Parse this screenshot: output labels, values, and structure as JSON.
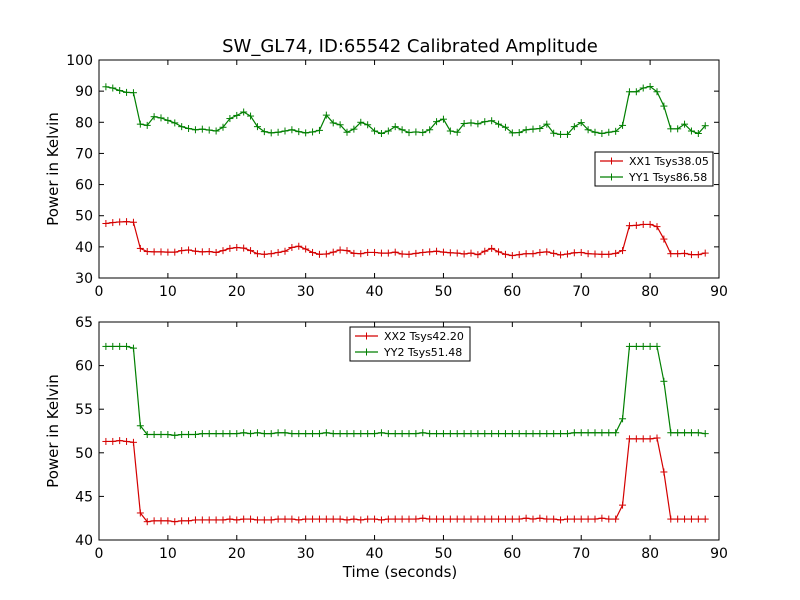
{
  "title": "SW_GL74, ID:65542 Calibrated Amplitude",
  "colors": {
    "xx": "#d40000",
    "yy": "#007f00"
  },
  "chart_data": [
    {
      "type": "line",
      "title": "SW_GL74, ID:65542 Calibrated Amplitude",
      "xlabel": "",
      "ylabel": "Power in Kelvin",
      "xlim": [
        0,
        90
      ],
      "ylim": [
        30,
        100
      ],
      "xticks": [
        "0",
        "10",
        "20",
        "30",
        "40",
        "50",
        "60",
        "70",
        "80",
        "90"
      ],
      "yticks": [
        "30",
        "40",
        "50",
        "60",
        "70",
        "80",
        "90",
        "100"
      ],
      "grid": false,
      "legend": "center-right",
      "marker": "+",
      "x": [
        1,
        2,
        3,
        4,
        5,
        6,
        7,
        8,
        9,
        10,
        11,
        12,
        13,
        14,
        15,
        16,
        17,
        18,
        19,
        20,
        21,
        22,
        23,
        24,
        25,
        26,
        27,
        28,
        29,
        30,
        31,
        32,
        33,
        34,
        35,
        36,
        37,
        38,
        39,
        40,
        41,
        42,
        43,
        44,
        45,
        46,
        47,
        48,
        49,
        50,
        51,
        52,
        53,
        54,
        55,
        56,
        57,
        58,
        59,
        60,
        61,
        62,
        63,
        64,
        65,
        66,
        67,
        68,
        69,
        70,
        71,
        72,
        73,
        74,
        75,
        76,
        77,
        78,
        79,
        80,
        81,
        82,
        83,
        84,
        85,
        86,
        87,
        88
      ],
      "series": [
        {
          "name": "XX1 Tsys38.05",
          "color": "#d40000",
          "values": [
            47.5,
            47.8,
            48.0,
            48.1,
            47.9,
            39.5,
            38.5,
            38.4,
            38.4,
            38.3,
            38.3,
            38.8,
            39.0,
            38.6,
            38.4,
            38.5,
            38.2,
            38.8,
            39.5,
            39.8,
            39.6,
            38.8,
            37.8,
            37.6,
            37.8,
            38.2,
            38.6,
            39.8,
            40.2,
            39.3,
            38.2,
            37.6,
            37.7,
            38.3,
            39.0,
            38.8,
            37.9,
            37.8,
            38.2,
            38.2,
            38.0,
            38.0,
            38.3,
            37.7,
            37.6,
            37.9,
            38.2,
            38.4,
            38.6,
            38.3,
            38.1,
            38.0,
            37.7,
            38.0,
            37.5,
            38.6,
            39.5,
            38.4,
            37.6,
            37.2,
            37.5,
            37.8,
            37.8,
            38.2,
            38.4,
            37.9,
            37.4,
            37.7,
            38.1,
            38.2,
            37.8,
            37.7,
            37.6,
            37.6,
            37.9,
            38.8,
            46.8,
            46.9,
            47.2,
            47.2,
            46.5,
            42.5,
            37.8,
            37.8,
            37.9,
            37.5,
            37.5,
            38.0
          ]
        },
        {
          "name": "YY1 Tsys86.58",
          "color": "#007f00",
          "values": [
            91.4,
            91.0,
            90.2,
            89.6,
            89.5,
            79.4,
            79.0,
            81.8,
            81.4,
            80.6,
            79.8,
            78.6,
            78.0,
            77.6,
            77.8,
            77.5,
            77.2,
            78.4,
            81.2,
            82.2,
            83.3,
            82.0,
            78.6,
            77.0,
            76.6,
            76.8,
            77.2,
            77.6,
            77.0,
            76.6,
            76.9,
            77.4,
            82.3,
            79.8,
            79.2,
            76.8,
            77.8,
            80.0,
            79.2,
            77.2,
            76.4,
            77.2,
            78.6,
            77.6,
            76.7,
            76.9,
            76.7,
            77.6,
            80.2,
            81.0,
            77.2,
            76.8,
            79.6,
            79.8,
            79.5,
            80.2,
            80.5,
            79.4,
            78.4,
            76.6,
            76.7,
            77.6,
            77.8,
            78.0,
            79.4,
            76.5,
            76.1,
            76.1,
            78.6,
            79.9,
            77.6,
            76.8,
            76.4,
            76.8,
            77.1,
            79.0,
            89.8,
            89.8,
            91.0,
            91.5,
            89.8,
            85.2,
            77.9,
            77.9,
            79.4,
            77.2,
            76.4,
            78.9
          ]
        }
      ]
    },
    {
      "type": "line",
      "title": "",
      "xlabel": "Time (seconds)",
      "ylabel": "Power in Kelvin",
      "xlim": [
        0,
        90
      ],
      "ylim": [
        40,
        65
      ],
      "xticks": [
        "0",
        "10",
        "20",
        "30",
        "40",
        "50",
        "60",
        "70",
        "80",
        "90"
      ],
      "yticks": [
        "40",
        "45",
        "50",
        "55",
        "60",
        "65"
      ],
      "grid": false,
      "legend": "top-center",
      "marker": "+",
      "x": [
        1,
        2,
        3,
        4,
        5,
        6,
        7,
        8,
        9,
        10,
        11,
        12,
        13,
        14,
        15,
        16,
        17,
        18,
        19,
        20,
        21,
        22,
        23,
        24,
        25,
        26,
        27,
        28,
        29,
        30,
        31,
        32,
        33,
        34,
        35,
        36,
        37,
        38,
        39,
        40,
        41,
        42,
        43,
        44,
        45,
        46,
        47,
        48,
        49,
        50,
        51,
        52,
        53,
        54,
        55,
        56,
        57,
        58,
        59,
        60,
        61,
        62,
        63,
        64,
        65,
        66,
        67,
        68,
        69,
        70,
        71,
        72,
        73,
        74,
        75,
        76,
        77,
        78,
        79,
        80,
        81,
        82,
        83,
        84,
        85,
        86,
        87,
        88
      ],
      "series": [
        {
          "name": "XX2 Tsys42.20",
          "color": "#d40000",
          "values": [
            51.3,
            51.3,
            51.4,
            51.3,
            51.2,
            43.1,
            42.1,
            42.2,
            42.2,
            42.2,
            42.1,
            42.2,
            42.2,
            42.3,
            42.3,
            42.3,
            42.3,
            42.3,
            42.4,
            42.3,
            42.4,
            42.4,
            42.3,
            42.3,
            42.3,
            42.4,
            42.4,
            42.4,
            42.3,
            42.4,
            42.4,
            42.4,
            42.4,
            42.4,
            42.4,
            42.3,
            42.4,
            42.3,
            42.4,
            42.4,
            42.3,
            42.4,
            42.4,
            42.4,
            42.4,
            42.4,
            42.5,
            42.4,
            42.4,
            42.4,
            42.4,
            42.4,
            42.4,
            42.4,
            42.4,
            42.4,
            42.4,
            42.4,
            42.4,
            42.4,
            42.4,
            42.5,
            42.4,
            42.5,
            42.4,
            42.4,
            42.3,
            42.4,
            42.4,
            42.4,
            42.4,
            42.4,
            42.5,
            42.4,
            42.4,
            44.0,
            51.6,
            51.6,
            51.6,
            51.6,
            51.7,
            47.8,
            42.4,
            42.4,
            42.4,
            42.4,
            42.4,
            42.4
          ]
        },
        {
          "name": "YY2 Tsys51.48",
          "color": "#007f00",
          "values": [
            62.2,
            62.2,
            62.2,
            62.2,
            62.0,
            53.1,
            52.1,
            52.1,
            52.1,
            52.1,
            52.0,
            52.1,
            52.1,
            52.1,
            52.2,
            52.2,
            52.2,
            52.2,
            52.2,
            52.2,
            52.3,
            52.2,
            52.3,
            52.2,
            52.2,
            52.3,
            52.3,
            52.2,
            52.2,
            52.2,
            52.2,
            52.2,
            52.3,
            52.2,
            52.2,
            52.2,
            52.2,
            52.2,
            52.2,
            52.2,
            52.3,
            52.2,
            52.2,
            52.2,
            52.2,
            52.2,
            52.3,
            52.2,
            52.2,
            52.2,
            52.2,
            52.2,
            52.2,
            52.2,
            52.2,
            52.2,
            52.2,
            52.2,
            52.2,
            52.2,
            52.2,
            52.2,
            52.2,
            52.2,
            52.2,
            52.2,
            52.2,
            52.2,
            52.3,
            52.3,
            52.3,
            52.3,
            52.3,
            52.3,
            52.3,
            53.9,
            62.2,
            62.2,
            62.2,
            62.2,
            62.2,
            58.2,
            52.3,
            52.3,
            52.3,
            52.3,
            52.3,
            52.2
          ]
        }
      ]
    }
  ]
}
